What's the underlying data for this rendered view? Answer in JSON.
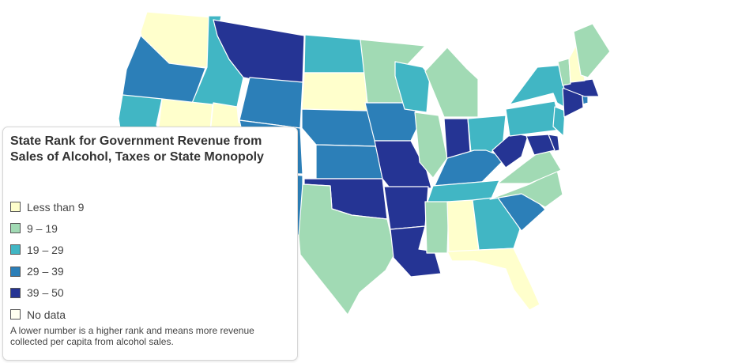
{
  "legend": {
    "title": "State Rank for Government Revenue from Sales of Alcohol, Taxes or State Monopoly",
    "note": "A lower number is a higher rank and means more revenue collected per capita from alcohol sales.",
    "items": [
      {
        "label": "Less than 9",
        "color": "#ffffcc"
      },
      {
        "label": "9 – 19",
        "color": "#a1dab4"
      },
      {
        "label": "19 – 29",
        "color": "#41b6c4"
      },
      {
        "label": "29 – 39",
        "color": "#2c7fb8"
      },
      {
        "label": "39 – 50",
        "color": "#253494"
      },
      {
        "label": "No data",
        "color": "#fffff0"
      }
    ]
  },
  "states": [
    {
      "abbr": "WA",
      "bin": 0
    },
    {
      "abbr": "OR",
      "bin": 3
    },
    {
      "abbr": "CA",
      "bin": 2
    },
    {
      "abbr": "ID",
      "bin": 2
    },
    {
      "abbr": "NV",
      "bin": 0
    },
    {
      "abbr": "UT",
      "bin": 0
    },
    {
      "abbr": "AZ",
      "bin": 0
    },
    {
      "abbr": "MT",
      "bin": 4
    },
    {
      "abbr": "WY",
      "bin": 3
    },
    {
      "abbr": "CO",
      "bin": 3
    },
    {
      "abbr": "NM",
      "bin": 3
    },
    {
      "abbr": "ND",
      "bin": 2
    },
    {
      "abbr": "SD",
      "bin": 0
    },
    {
      "abbr": "NE",
      "bin": 3
    },
    {
      "abbr": "KS",
      "bin": 3
    },
    {
      "abbr": "OK",
      "bin": 4
    },
    {
      "abbr": "TX",
      "bin": 1
    },
    {
      "abbr": "MN",
      "bin": 1
    },
    {
      "abbr": "IA",
      "bin": 3
    },
    {
      "abbr": "MO",
      "bin": 4
    },
    {
      "abbr": "AR",
      "bin": 4
    },
    {
      "abbr": "LA",
      "bin": 4
    },
    {
      "abbr": "WI",
      "bin": 2
    },
    {
      "abbr": "IL",
      "bin": 1
    },
    {
      "abbr": "MI",
      "bin": 1
    },
    {
      "abbr": "IN",
      "bin": 4
    },
    {
      "abbr": "OH",
      "bin": 2
    },
    {
      "abbr": "KY",
      "bin": 3
    },
    {
      "abbr": "TN",
      "bin": 2
    },
    {
      "abbr": "MS",
      "bin": 1
    },
    {
      "abbr": "AL",
      "bin": 0
    },
    {
      "abbr": "GA",
      "bin": 2
    },
    {
      "abbr": "FL",
      "bin": 0
    },
    {
      "abbr": "SC",
      "bin": 3
    },
    {
      "abbr": "NC",
      "bin": 1
    },
    {
      "abbr": "VA",
      "bin": 1
    },
    {
      "abbr": "WV",
      "bin": 4
    },
    {
      "abbr": "PA",
      "bin": 2
    },
    {
      "abbr": "NY",
      "bin": 2
    },
    {
      "abbr": "NJ",
      "bin": 2
    },
    {
      "abbr": "DE",
      "bin": 4
    },
    {
      "abbr": "MD",
      "bin": 4
    },
    {
      "abbr": "CT",
      "bin": 4
    },
    {
      "abbr": "RI",
      "bin": 3
    },
    {
      "abbr": "MA",
      "bin": 4
    },
    {
      "abbr": "VT",
      "bin": 1
    },
    {
      "abbr": "NH",
      "bin": 0
    },
    {
      "abbr": "ME",
      "bin": 1
    }
  ]
}
